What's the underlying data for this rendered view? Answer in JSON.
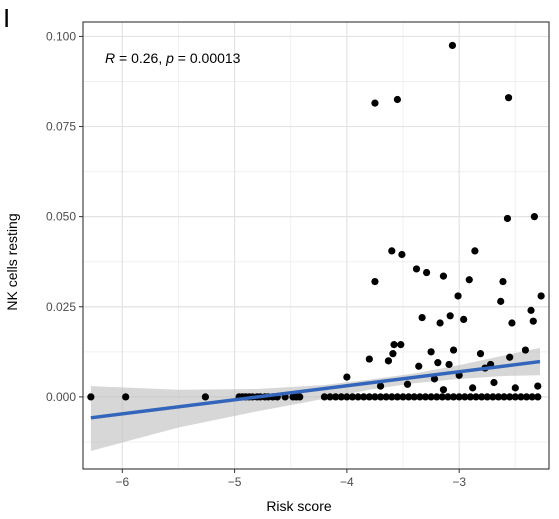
{
  "panel_label": "I",
  "chart_data": {
    "type": "scatter",
    "xlabel": "Risk score",
    "ylabel": "NK cells resting",
    "xlim": [
      -6.35,
      -2.2
    ],
    "ylim": [
      -0.02,
      0.104
    ],
    "x_ticks": [
      -6,
      -5,
      -4,
      -3
    ],
    "x_tick_labels": [
      "−6",
      "−5",
      "−4",
      "−3"
    ],
    "y_ticks": [
      0.0,
      0.025,
      0.05,
      0.075,
      0.1
    ],
    "y_tick_labels": [
      "0.000",
      "0.025",
      "0.050",
      "0.075",
      "0.100"
    ],
    "grid": true,
    "annotation": {
      "r_symbol": "R",
      "r_text": " = 0.26, ",
      "p_symbol": "p",
      "p_text": " = 0.00013"
    },
    "fit_line": {
      "x": [
        -6.28,
        -2.28
      ],
      "y": [
        -0.0058,
        0.0098
      ],
      "color": "#3366bb"
    },
    "confidence_band": {
      "x": [
        -6.28,
        -5.5,
        -4.8,
        -4.2,
        -3.8,
        -3.4,
        -3.0,
        -2.6,
        -2.28
      ],
      "lower": [
        -0.015,
        -0.0085,
        -0.004,
        -0.0005,
        0.002,
        0.0038,
        0.005,
        0.0058,
        0.006
      ],
      "upper": [
        0.003,
        0.002,
        0.0022,
        0.0033,
        0.0048,
        0.0065,
        0.0088,
        0.0115,
        0.0136
      ]
    },
    "points_color": "#000000",
    "points": [
      {
        "x": -6.28,
        "y": 0.0
      },
      {
        "x": -5.97,
        "y": 0.0
      },
      {
        "x": -5.26,
        "y": 0.0
      },
      {
        "x": -4.96,
        "y": 0.0
      },
      {
        "x": -4.93,
        "y": 0.0
      },
      {
        "x": -4.9,
        "y": 0.0
      },
      {
        "x": -4.87,
        "y": 0.0
      },
      {
        "x": -4.84,
        "y": 0.0
      },
      {
        "x": -4.8,
        "y": 0.0
      },
      {
        "x": -4.77,
        "y": 0.0
      },
      {
        "x": -4.73,
        "y": 0.0
      },
      {
        "x": -4.7,
        "y": 0.0
      },
      {
        "x": -4.66,
        "y": 0.0
      },
      {
        "x": -4.62,
        "y": 0.0
      },
      {
        "x": -4.55,
        "y": 0.0
      },
      {
        "x": -4.48,
        "y": 0.0
      },
      {
        "x": -4.45,
        "y": 0.0
      },
      {
        "x": -4.42,
        "y": 0.0
      },
      {
        "x": -4.2,
        "y": 0.0
      },
      {
        "x": -4.15,
        "y": 0.0
      },
      {
        "x": -4.1,
        "y": 0.0
      },
      {
        "x": -4.05,
        "y": 0.0
      },
      {
        "x": -4.0,
        "y": 0.0
      },
      {
        "x": -3.95,
        "y": 0.0
      },
      {
        "x": -3.9,
        "y": 0.0
      },
      {
        "x": -3.85,
        "y": 0.0
      },
      {
        "x": -3.8,
        "y": 0.0
      },
      {
        "x": -3.75,
        "y": 0.0
      },
      {
        "x": -3.7,
        "y": 0.0
      },
      {
        "x": -3.65,
        "y": 0.0
      },
      {
        "x": -3.6,
        "y": 0.0
      },
      {
        "x": -3.55,
        "y": 0.0
      },
      {
        "x": -3.5,
        "y": 0.0
      },
      {
        "x": -3.45,
        "y": 0.0
      },
      {
        "x": -3.4,
        "y": 0.0
      },
      {
        "x": -3.35,
        "y": 0.0
      },
      {
        "x": -3.3,
        "y": 0.0
      },
      {
        "x": -3.25,
        "y": 0.0
      },
      {
        "x": -3.2,
        "y": 0.0
      },
      {
        "x": -3.15,
        "y": 0.0
      },
      {
        "x": -3.1,
        "y": 0.0
      },
      {
        "x": -3.05,
        "y": 0.0
      },
      {
        "x": -3.0,
        "y": 0.0
      },
      {
        "x": -2.95,
        "y": 0.0
      },
      {
        "x": -2.9,
        "y": 0.0
      },
      {
        "x": -2.85,
        "y": 0.0
      },
      {
        "x": -2.8,
        "y": 0.0
      },
      {
        "x": -2.75,
        "y": 0.0
      },
      {
        "x": -2.7,
        "y": 0.0
      },
      {
        "x": -2.65,
        "y": 0.0
      },
      {
        "x": -2.6,
        "y": 0.0
      },
      {
        "x": -2.55,
        "y": 0.0
      },
      {
        "x": -2.5,
        "y": 0.0
      },
      {
        "x": -2.45,
        "y": 0.0
      },
      {
        "x": -2.4,
        "y": 0.0
      },
      {
        "x": -2.35,
        "y": 0.0
      },
      {
        "x": -2.3,
        "y": 0.0
      },
      {
        "x": -3.06,
        "y": 0.0975
      },
      {
        "x": -3.75,
        "y": 0.0815
      },
      {
        "x": -3.55,
        "y": 0.0825
      },
      {
        "x": -2.56,
        "y": 0.083
      },
      {
        "x": -2.57,
        "y": 0.0495
      },
      {
        "x": -2.33,
        "y": 0.05
      },
      {
        "x": -3.6,
        "y": 0.0405
      },
      {
        "x": -3.51,
        "y": 0.0395
      },
      {
        "x": -2.86,
        "y": 0.0405
      },
      {
        "x": -3.75,
        "y": 0.032
      },
      {
        "x": -3.38,
        "y": 0.0355
      },
      {
        "x": -3.29,
        "y": 0.0345
      },
      {
        "x": -3.14,
        "y": 0.0335
      },
      {
        "x": -3.08,
        "y": 0.0225
      },
      {
        "x": -3.01,
        "y": 0.028
      },
      {
        "x": -2.91,
        "y": 0.0325
      },
      {
        "x": -2.61,
        "y": 0.032
      },
      {
        "x": -2.36,
        "y": 0.024
      },
      {
        "x": -2.27,
        "y": 0.028
      },
      {
        "x": -2.63,
        "y": 0.0265
      },
      {
        "x": -2.53,
        "y": 0.0205
      },
      {
        "x": -3.33,
        "y": 0.022
      },
      {
        "x": -3.17,
        "y": 0.0205
      },
      {
        "x": -2.96,
        "y": 0.0215
      },
      {
        "x": -3.58,
        "y": 0.0145
      },
      {
        "x": -3.52,
        "y": 0.0145
      },
      {
        "x": -3.59,
        "y": 0.012
      },
      {
        "x": -3.25,
        "y": 0.0125
      },
      {
        "x": -3.05,
        "y": 0.013
      },
      {
        "x": -2.81,
        "y": 0.012
      },
      {
        "x": -2.41,
        "y": 0.013
      },
      {
        "x": -2.34,
        "y": 0.021
      },
      {
        "x": -3.8,
        "y": 0.0105
      },
      {
        "x": -3.63,
        "y": 0.01
      },
      {
        "x": -3.36,
        "y": 0.0085
      },
      {
        "x": -3.19,
        "y": 0.0095
      },
      {
        "x": -3.09,
        "y": 0.009
      },
      {
        "x": -2.72,
        "y": 0.009
      },
      {
        "x": -2.55,
        "y": 0.011
      },
      {
        "x": -4.0,
        "y": 0.0055
      },
      {
        "x": -3.22,
        "y": 0.005
      },
      {
        "x": -3.0,
        "y": 0.006
      },
      {
        "x": -2.77,
        "y": 0.008
      },
      {
        "x": -2.69,
        "y": 0.004
      },
      {
        "x": -3.46,
        "y": 0.0035
      },
      {
        "x": -3.7,
        "y": 0.003
      },
      {
        "x": -2.5,
        "y": 0.0025
      },
      {
        "x": -3.14,
        "y": 0.002
      },
      {
        "x": -2.88,
        "y": 0.0025
      },
      {
        "x": -2.3,
        "y": 0.003
      }
    ]
  }
}
